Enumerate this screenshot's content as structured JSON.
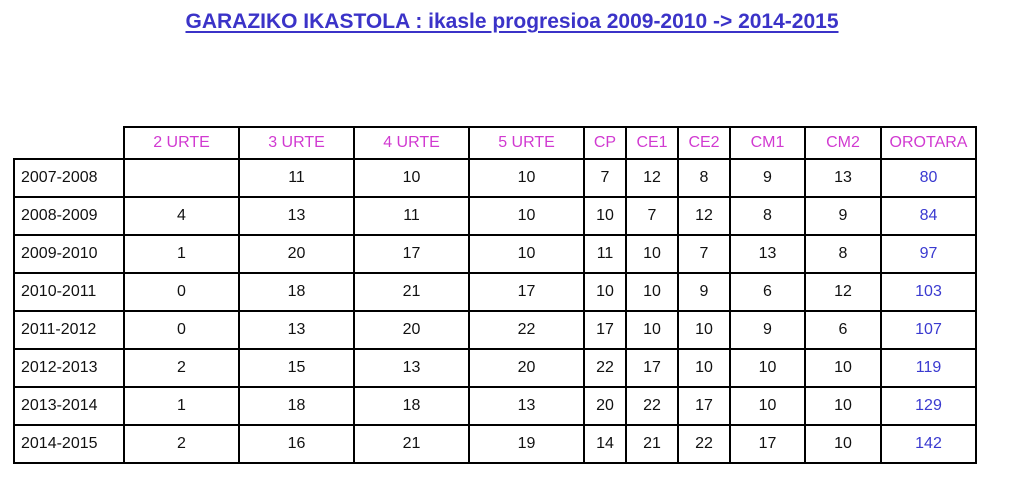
{
  "title": "GARAZIKO IKASTOLA : ikasle progresioa 2009-2010 -> 2014-2015",
  "table": {
    "headers": [
      "2 URTE",
      "3 URTE",
      "4 URTE",
      "5 URTE",
      "CP",
      "CE1",
      "CE2",
      "CM1",
      "CM2",
      "OROTARA"
    ],
    "rows": [
      {
        "year": "2007-2008",
        "cells": [
          "",
          "11",
          "10",
          "10",
          "7",
          "12",
          "8",
          "9",
          "13",
          "80"
        ]
      },
      {
        "year": "2008-2009",
        "cells": [
          "4",
          "13",
          "11",
          "10",
          "10",
          "7",
          "12",
          "8",
          "9",
          "84"
        ]
      },
      {
        "year": "2009-2010",
        "cells": [
          "1",
          "20",
          "17",
          "10",
          "11",
          "10",
          "7",
          "13",
          "8",
          "97"
        ]
      },
      {
        "year": "2010-2011",
        "cells": [
          "0",
          "18",
          "21",
          "17",
          "10",
          "10",
          "9",
          "6",
          "12",
          "103"
        ]
      },
      {
        "year": "2011-2012",
        "cells": [
          "0",
          "13",
          "20",
          "22",
          "17",
          "10",
          "10",
          "9",
          "6",
          "107"
        ]
      },
      {
        "year": "2012-2013",
        "cells": [
          "2",
          "15",
          "13",
          "20",
          "22",
          "17",
          "10",
          "10",
          "10",
          "119"
        ]
      },
      {
        "year": "2013-2014",
        "cells": [
          "1",
          "18",
          "18",
          "13",
          "20",
          "22",
          "17",
          "10",
          "10",
          "129"
        ]
      },
      {
        "year": "2014-2015",
        "cells": [
          "2",
          "16",
          "21",
          "19",
          "14",
          "21",
          "22",
          "17",
          "10",
          "142"
        ]
      }
    ]
  },
  "colors": {
    "title": "#3b33c8",
    "header": "#d13ad1",
    "total": "#3a3ad0"
  }
}
